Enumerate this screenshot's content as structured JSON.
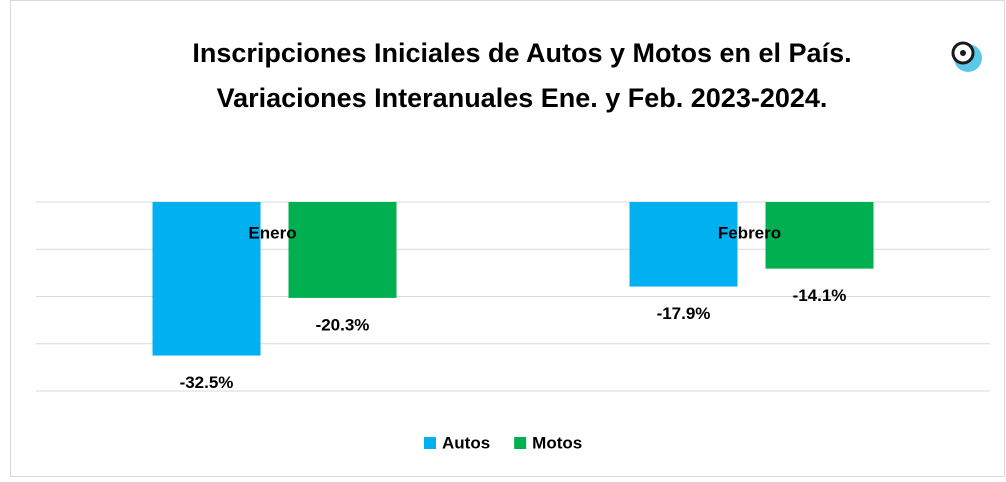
{
  "chart_data": {
    "type": "bar",
    "title": [
      "Inscripciones Iniciales de Autos y Motos en el País.",
      "Variaciones Interanuales Ene. y Feb. 2023-2024."
    ],
    "categories": [
      "Enero",
      "Febrero"
    ],
    "series": [
      {
        "name": "Autos",
        "color": "#00b0f0",
        "values": [
          -32.5,
          -17.9
        ],
        "value_labels": [
          "-32.5%",
          "-17.9%"
        ]
      },
      {
        "name": "Motos",
        "color": "#00b050",
        "values": [
          -20.3,
          -14.1
        ],
        "value_labels": [
          "-20.3%",
          "-14.1%"
        ]
      }
    ],
    "ylim": [
      -40,
      0
    ],
    "yticks": [
      0,
      -10,
      -20,
      -30,
      -40
    ],
    "grid": true,
    "legend": "bottom"
  }
}
